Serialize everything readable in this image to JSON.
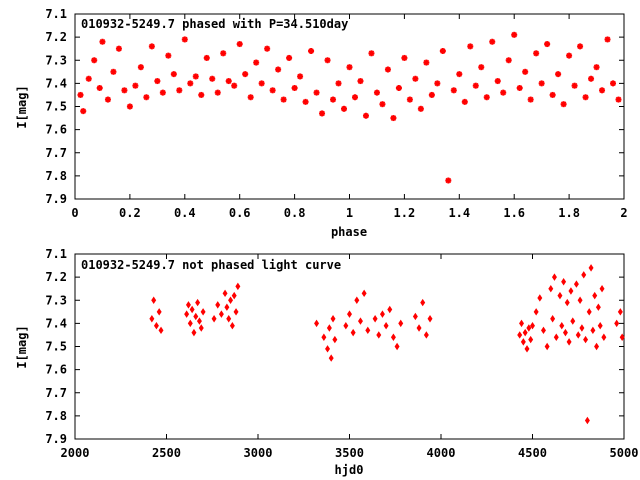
{
  "chart_data": [
    {
      "type": "scatter",
      "title": "010932-5249.7 phased with P=34.510day",
      "xlabel": "phase",
      "ylabel": "I[mag]",
      "xlim": [
        0,
        2
      ],
      "ylim": [
        7.1,
        7.9
      ],
      "y_inverted": true,
      "x_ticks": [
        0,
        0.2,
        0.4,
        0.6,
        0.8,
        1,
        1.2,
        1.4,
        1.6,
        1.8,
        2
      ],
      "x_tick_labels": [
        "0",
        "0.2",
        "0.4",
        "0.6",
        "0.8",
        "1",
        "1.2",
        "1.4",
        "1.6",
        "1.8",
        "2"
      ],
      "y_ticks": [
        7.1,
        7.2,
        7.3,
        7.4,
        7.5,
        7.6,
        7.7,
        7.8,
        7.9
      ],
      "y_tick_labels": [
        "7.1",
        "7.2",
        "7.3",
        "7.4",
        "7.5",
        "7.6",
        "7.7",
        "7.8",
        "7.9"
      ],
      "marker": "star",
      "color": "#ff0000",
      "grid": false,
      "legend": "none",
      "series": [
        {
          "points": [
            [
              0.02,
              7.45
            ],
            [
              0.03,
              7.52
            ],
            [
              0.05,
              7.38
            ],
            [
              0.07,
              7.3
            ],
            [
              0.09,
              7.42
            ],
            [
              0.1,
              7.22
            ],
            [
              0.12,
              7.47
            ],
            [
              0.14,
              7.35
            ],
            [
              0.16,
              7.25
            ],
            [
              0.18,
              7.43
            ],
            [
              0.2,
              7.5
            ],
            [
              0.22,
              7.41
            ],
            [
              0.24,
              7.33
            ],
            [
              0.26,
              7.46
            ],
            [
              0.28,
              7.24
            ],
            [
              0.3,
              7.39
            ],
            [
              0.32,
              7.44
            ],
            [
              0.34,
              7.28
            ],
            [
              0.36,
              7.36
            ],
            [
              0.38,
              7.43
            ],
            [
              0.4,
              7.21
            ],
            [
              0.42,
              7.4
            ],
            [
              0.44,
              7.37
            ],
            [
              0.46,
              7.45
            ],
            [
              0.48,
              7.29
            ],
            [
              0.5,
              7.38
            ],
            [
              0.52,
              7.44
            ],
            [
              0.54,
              7.27
            ],
            [
              0.56,
              7.39
            ],
            [
              0.58,
              7.41
            ],
            [
              0.6,
              7.23
            ],
            [
              0.62,
              7.36
            ],
            [
              0.64,
              7.46
            ],
            [
              0.66,
              7.31
            ],
            [
              0.68,
              7.4
            ],
            [
              0.7,
              7.25
            ],
            [
              0.72,
              7.43
            ],
            [
              0.74,
              7.34
            ],
            [
              0.76,
              7.47
            ],
            [
              0.78,
              7.29
            ],
            [
              0.8,
              7.42
            ],
            [
              0.82,
              7.37
            ],
            [
              0.84,
              7.48
            ],
            [
              0.86,
              7.26
            ],
            [
              0.88,
              7.44
            ],
            [
              0.9,
              7.53
            ],
            [
              0.92,
              7.3
            ],
            [
              0.94,
              7.47
            ],
            [
              0.96,
              7.4
            ],
            [
              0.98,
              7.51
            ],
            [
              1.0,
              7.33
            ],
            [
              1.02,
              7.46
            ],
            [
              1.04,
              7.39
            ],
            [
              1.06,
              7.54
            ],
            [
              1.08,
              7.27
            ],
            [
              1.1,
              7.44
            ],
            [
              1.12,
              7.49
            ],
            [
              1.14,
              7.34
            ],
            [
              1.16,
              7.55
            ],
            [
              1.18,
              7.42
            ],
            [
              1.2,
              7.29
            ],
            [
              1.22,
              7.47
            ],
            [
              1.24,
              7.38
            ],
            [
              1.26,
              7.51
            ],
            [
              1.28,
              7.31
            ],
            [
              1.3,
              7.45
            ],
            [
              1.32,
              7.4
            ],
            [
              1.34,
              7.26
            ],
            [
              1.36,
              7.82
            ],
            [
              1.38,
              7.43
            ],
            [
              1.4,
              7.36
            ],
            [
              1.42,
              7.48
            ],
            [
              1.44,
              7.24
            ],
            [
              1.46,
              7.41
            ],
            [
              1.48,
              7.33
            ],
            [
              1.5,
              7.46
            ],
            [
              1.52,
              7.22
            ],
            [
              1.54,
              7.39
            ],
            [
              1.56,
              7.44
            ],
            [
              1.58,
              7.3
            ],
            [
              1.6,
              7.19
            ],
            [
              1.62,
              7.42
            ],
            [
              1.64,
              7.35
            ],
            [
              1.66,
              7.47
            ],
            [
              1.68,
              7.27
            ],
            [
              1.7,
              7.4
            ],
            [
              1.72,
              7.23
            ],
            [
              1.74,
              7.45
            ],
            [
              1.76,
              7.36
            ],
            [
              1.78,
              7.49
            ],
            [
              1.8,
              7.28
            ],
            [
              1.82,
              7.41
            ],
            [
              1.84,
              7.24
            ],
            [
              1.86,
              7.46
            ],
            [
              1.88,
              7.38
            ],
            [
              1.9,
              7.33
            ],
            [
              1.92,
              7.43
            ],
            [
              1.94,
              7.21
            ],
            [
              1.96,
              7.4
            ],
            [
              1.98,
              7.47
            ]
          ]
        }
      ]
    },
    {
      "type": "scatter",
      "title": "010932-5249.7 not phased light curve",
      "xlabel": "hjd0",
      "ylabel": "I[mag]",
      "xlim": [
        2000,
        5000
      ],
      "ylim": [
        7.1,
        7.9
      ],
      "y_inverted": true,
      "x_ticks": [
        2000,
        2500,
        3000,
        3500,
        4000,
        4500,
        5000
      ],
      "x_tick_labels": [
        "2000",
        "2500",
        "3000",
        "3500",
        "4000",
        "4500",
        "5000"
      ],
      "y_ticks": [
        7.1,
        7.2,
        7.3,
        7.4,
        7.5,
        7.6,
        7.7,
        7.8,
        7.9
      ],
      "y_tick_labels": [
        "7.1",
        "7.2",
        "7.3",
        "7.4",
        "7.5",
        "7.6",
        "7.7",
        "7.8",
        "7.9"
      ],
      "marker": "diamond",
      "color": "#ff0000",
      "grid": false,
      "legend": "none",
      "series": [
        {
          "points": [
            [
              2420,
              7.38
            ],
            [
              2430,
              7.3
            ],
            [
              2445,
              7.41
            ],
            [
              2460,
              7.35
            ],
            [
              2470,
              7.43
            ],
            [
              2610,
              7.36
            ],
            [
              2620,
              7.32
            ],
            [
              2630,
              7.4
            ],
            [
              2640,
              7.34
            ],
            [
              2650,
              7.44
            ],
            [
              2660,
              7.37
            ],
            [
              2670,
              7.31
            ],
            [
              2680,
              7.39
            ],
            [
              2690,
              7.42
            ],
            [
              2700,
              7.35
            ],
            [
              2760,
              7.38
            ],
            [
              2780,
              7.32
            ],
            [
              2800,
              7.36
            ],
            [
              2820,
              7.27
            ],
            [
              2830,
              7.33
            ],
            [
              2840,
              7.38
            ],
            [
              2850,
              7.3
            ],
            [
              2860,
              7.41
            ],
            [
              2870,
              7.28
            ],
            [
              2880,
              7.35
            ],
            [
              2890,
              7.24
            ],
            [
              3320,
              7.4
            ],
            [
              3360,
              7.46
            ],
            [
              3380,
              7.51
            ],
            [
              3390,
              7.42
            ],
            [
              3400,
              7.55
            ],
            [
              3410,
              7.38
            ],
            [
              3420,
              7.47
            ],
            [
              3480,
              7.41
            ],
            [
              3500,
              7.36
            ],
            [
              3520,
              7.44
            ],
            [
              3540,
              7.3
            ],
            [
              3560,
              7.39
            ],
            [
              3580,
              7.27
            ],
            [
              3600,
              7.43
            ],
            [
              3640,
              7.38
            ],
            [
              3660,
              7.45
            ],
            [
              3680,
              7.36
            ],
            [
              3700,
              7.41
            ],
            [
              3720,
              7.34
            ],
            [
              3740,
              7.46
            ],
            [
              3760,
              7.5
            ],
            [
              3780,
              7.4
            ],
            [
              3860,
              7.37
            ],
            [
              3880,
              7.42
            ],
            [
              3900,
              7.31
            ],
            [
              3920,
              7.45
            ],
            [
              3940,
              7.38
            ],
            [
              4430,
              7.45
            ],
            [
              4440,
              7.4
            ],
            [
              4450,
              7.48
            ],
            [
              4460,
              7.44
            ],
            [
              4470,
              7.51
            ],
            [
              4480,
              7.42
            ],
            [
              4490,
              7.47
            ],
            [
              4500,
              7.41
            ],
            [
              4520,
              7.35
            ],
            [
              4540,
              7.29
            ],
            [
              4560,
              7.43
            ],
            [
              4580,
              7.5
            ],
            [
              4600,
              7.25
            ],
            [
              4610,
              7.38
            ],
            [
              4620,
              7.2
            ],
            [
              4630,
              7.46
            ],
            [
              4650,
              7.28
            ],
            [
              4660,
              7.41
            ],
            [
              4670,
              7.22
            ],
            [
              4680,
              7.44
            ],
            [
              4690,
              7.31
            ],
            [
              4700,
              7.48
            ],
            [
              4710,
              7.26
            ],
            [
              4720,
              7.39
            ],
            [
              4740,
              7.23
            ],
            [
              4750,
              7.45
            ],
            [
              4760,
              7.3
            ],
            [
              4770,
              7.42
            ],
            [
              4780,
              7.19
            ],
            [
              4790,
              7.47
            ],
            [
              4800,
              7.82
            ],
            [
              4810,
              7.35
            ],
            [
              4820,
              7.16
            ],
            [
              4830,
              7.43
            ],
            [
              4840,
              7.28
            ],
            [
              4850,
              7.5
            ],
            [
              4860,
              7.33
            ],
            [
              4870,
              7.41
            ],
            [
              4880,
              7.25
            ],
            [
              4890,
              7.46
            ],
            [
              4960,
              7.4
            ],
            [
              4980,
              7.35
            ],
            [
              4990,
              7.46
            ]
          ]
        }
      ]
    }
  ]
}
